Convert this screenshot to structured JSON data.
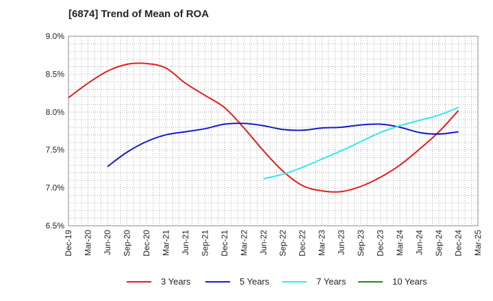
{
  "chart_data": {
    "type": "line",
    "title": "[6874]  Trend of Mean of ROA",
    "xlabel": "",
    "ylabel": "",
    "ylim": [
      6.5,
      9.0
    ],
    "yticks": [
      "6.5%",
      "7.0%",
      "7.5%",
      "8.0%",
      "8.5%",
      "9.0%"
    ],
    "ytick_values": [
      6.5,
      7.0,
      7.5,
      8.0,
      8.5,
      9.0
    ],
    "categories": [
      "Dec-19",
      "Mar-20",
      "Jun-20",
      "Sep-20",
      "Dec-20",
      "Mar-21",
      "Jun-21",
      "Sep-21",
      "Dec-21",
      "Mar-22",
      "Jun-22",
      "Sep-22",
      "Dec-22",
      "Mar-23",
      "Jun-23",
      "Sep-23",
      "Dec-23",
      "Mar-24",
      "Jun-24",
      "Sep-24",
      "Dec-24",
      "Mar-25"
    ],
    "grid": true,
    "legend_position": "bottom",
    "series": [
      {
        "name": "3 Years",
        "color": "#e8191a",
        "values": [
          8.19,
          8.38,
          8.54,
          8.63,
          8.64,
          8.58,
          8.38,
          8.22,
          8.06,
          7.79,
          7.49,
          7.22,
          7.03,
          6.96,
          6.95,
          7.02,
          7.14,
          7.3,
          7.51,
          7.74,
          8.02,
          null
        ]
      },
      {
        "name": "5 Years",
        "color": "#1417c8",
        "values": [
          null,
          null,
          7.28,
          7.47,
          7.61,
          7.7,
          7.74,
          7.78,
          7.84,
          7.85,
          7.82,
          7.77,
          7.76,
          7.79,
          7.8,
          7.83,
          7.84,
          7.8,
          7.73,
          7.71,
          7.74,
          null
        ]
      },
      {
        "name": "7 Years",
        "color": "#2de8f0",
        "values": [
          null,
          null,
          null,
          null,
          null,
          null,
          null,
          null,
          null,
          null,
          7.12,
          7.18,
          7.27,
          7.38,
          7.49,
          7.61,
          7.73,
          7.82,
          7.89,
          7.96,
          8.06,
          null
        ]
      },
      {
        "name": "10 Years",
        "color": "#1a8c1a",
        "values": [
          null,
          null,
          null,
          null,
          null,
          null,
          null,
          null,
          null,
          null,
          null,
          null,
          null,
          null,
          null,
          null,
          null,
          null,
          null,
          null,
          null,
          null
        ]
      }
    ]
  }
}
